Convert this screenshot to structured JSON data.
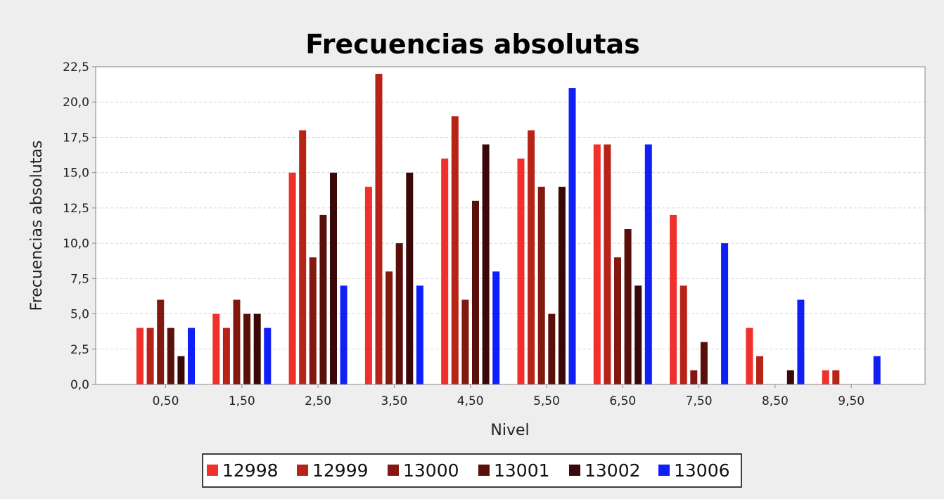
{
  "chart_data": {
    "type": "bar",
    "title": "Frecuencias absolutas",
    "xlabel": "Nivel",
    "ylabel": "Frecuencias absolutas",
    "categories": [
      "0,50",
      "1,50",
      "2,50",
      "3,50",
      "4,50",
      "5,50",
      "6,50",
      "7,50",
      "8,50",
      "9,50"
    ],
    "ylim": [
      0,
      22.5
    ],
    "yticks": [
      "0,0",
      "2,5",
      "5,0",
      "7,5",
      "10,0",
      "12,5",
      "15,0",
      "17,5",
      "20,0",
      "22,5"
    ],
    "grid": true,
    "legend_position": "bottom",
    "series": [
      {
        "name": "12998",
        "color": "#f0302a",
        "values": [
          4,
          5,
          15,
          14,
          16,
          16,
          17,
          12,
          4,
          1
        ]
      },
      {
        "name": "12999",
        "color": "#b82318",
        "values": [
          4,
          4,
          18,
          22,
          19,
          18,
          17,
          7,
          2,
          1
        ]
      },
      {
        "name": "13000",
        "color": "#82180f",
        "values": [
          6,
          6,
          9,
          8,
          6,
          14,
          9,
          1,
          0,
          0
        ]
      },
      {
        "name": "13001",
        "color": "#5a100a",
        "values": [
          4,
          5,
          12,
          10,
          13,
          5,
          11,
          3,
          0,
          0
        ]
      },
      {
        "name": "13002",
        "color": "#3a0806",
        "values": [
          2,
          5,
          15,
          15,
          17,
          14,
          7,
          0,
          1,
          0
        ]
      },
      {
        "name": "13006",
        "color": "#0f1ff5",
        "values": [
          4,
          4,
          7,
          7,
          8,
          21,
          17,
          10,
          6,
          2
        ]
      }
    ]
  }
}
